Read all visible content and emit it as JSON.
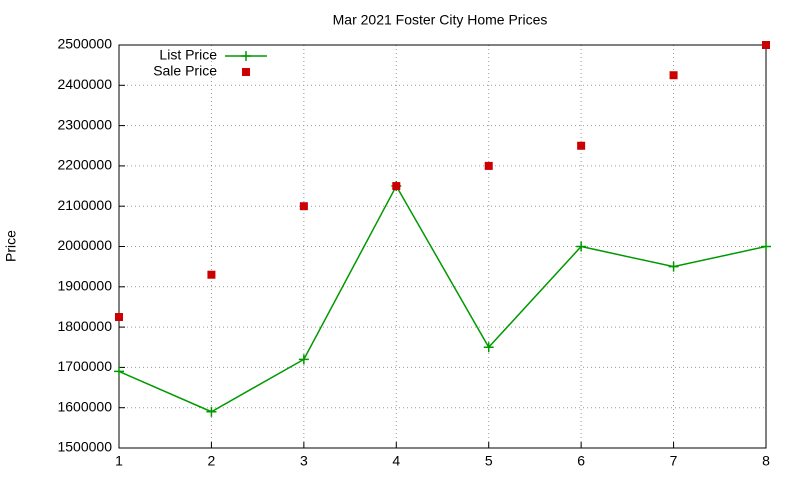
{
  "chart_data": {
    "type": "line",
    "title": "Mar 2021 Foster City Home Prices",
    "y_label": "Price",
    "x": [
      1,
      2,
      3,
      4,
      5,
      6,
      7,
      8
    ],
    "series": [
      {
        "name": "List Price",
        "color": "#009900",
        "style": "linespoints",
        "values": [
          1690000,
          1590000,
          1720000,
          2150000,
          1750000,
          2000000,
          1950000,
          2000000
        ]
      },
      {
        "name": "Sale Price",
        "color": "#cc0000",
        "style": "points",
        "values": [
          1825000,
          1930000,
          2100000,
          2150000,
          2200000,
          2250000,
          2425000,
          2500000
        ]
      }
    ],
    "xlim": [
      1,
      8
    ],
    "xticks": [
      1,
      2,
      3,
      4,
      5,
      6,
      7,
      8
    ],
    "ylim": [
      1500000,
      2500000
    ],
    "yticks": [
      1500000,
      1600000,
      1700000,
      1800000,
      1900000,
      2000000,
      2100000,
      2200000,
      2300000,
      2400000,
      2500000
    ],
    "grid": true,
    "legend": "top-left"
  }
}
